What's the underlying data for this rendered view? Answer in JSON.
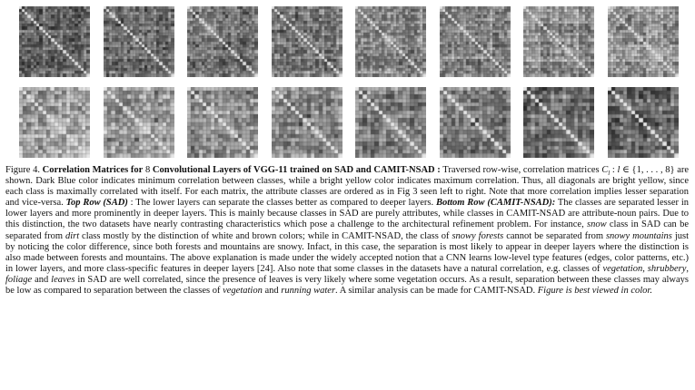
{
  "figure": {
    "rows": [
      {
        "name": "SAD",
        "matrices": 8,
        "classes": 24,
        "seed": 11
      },
      {
        "name": "CAMIT-NSAD",
        "matrices": 8,
        "classes": 18,
        "seed": 47
      }
    ],
    "palette": {
      "low": "#2a2a2a",
      "high": "#e6e6e6"
    }
  },
  "caption": {
    "label": "Figure 4.",
    "title_a": "Correlation Matrices for",
    "title_num": " 8 ",
    "title_b": "Convolutional Layers of VGG-11 trained on SAD and CAMIT-NSAD :",
    "t1": " Traversed row-wise, correlation matrices ",
    "C": "C",
    "l": "l",
    "t2": " : ",
    "l2": "l",
    "t3": " ∈ {1, . . . , 8} are shown. Dark Blue color indicates minimum correlation between classes, while a bright yellow color indicates maximum correlation. Thus, all diagonals are bright yellow, since each class is maximally correlated with itself. For each matrix, the attribute classes are ordered as in Fig  3 seen left to right. Note that more correlation implies lesser separation and vice-versa. ",
    "top_row": "Top Row (SAD)",
    "t4": " : The lower layers can separate the classes better as compared to deeper layers. ",
    "bottom_row": "Bottom Row (CAMIT-NSAD):",
    "t5": " The classes are separated lesser in lower layers and more prominently in deeper layers. This is mainly because classes in SAD are purely attributes, while classes in CAMIT-NSAD are attribute-noun pairs. Due to this distinction, the two datasets have nearly contrasting characteristics which pose a challenge to the architectural refinement problem. For instance, ",
    "snow": "snow",
    "t6": " class in SAD can be separated from ",
    "dirt": "dirt",
    "t7": " class mostly by the distinction of white and brown colors; while in CAMIT-NSAD, the class of ",
    "snowy_forests": "snowy forests",
    "t8": " cannot be separated from ",
    "snowy_mountains": "snowy mountains",
    "t9": " just by noticing the color difference, since both forests and mountains are snowy. Infact, in this case, the separation is most likely to appear in deeper layers where the distinction is also made between forests and mountains. The above explanation is made under the widely accepted notion that a CNN learns low-level type features (edges, color patterns, etc.) in lower layers, and more class-specific features in deeper layers [24]. Also note that some classes in the datasets have a natural correlation, e.g. classes of ",
    "vegetation": "vegetation",
    "t10": ", ",
    "shrubbery": "shrubbery",
    "t11": ", ",
    "foliage": "foliage",
    "t12": " and ",
    "leaves": "leaves",
    "t13": " in SAD are well correlated, since the presence of leaves is very likely where some vegetation occurs. As a result, separation between these classes may always be low as compared to separation between the classes of ",
    "vegetation2": "vegetation",
    "t14": " and ",
    "running_water": "running water",
    "t15": ". A similar analysis can be made for CAMIT-NSAD. ",
    "best_viewed": "Figure is best viewed in color."
  }
}
